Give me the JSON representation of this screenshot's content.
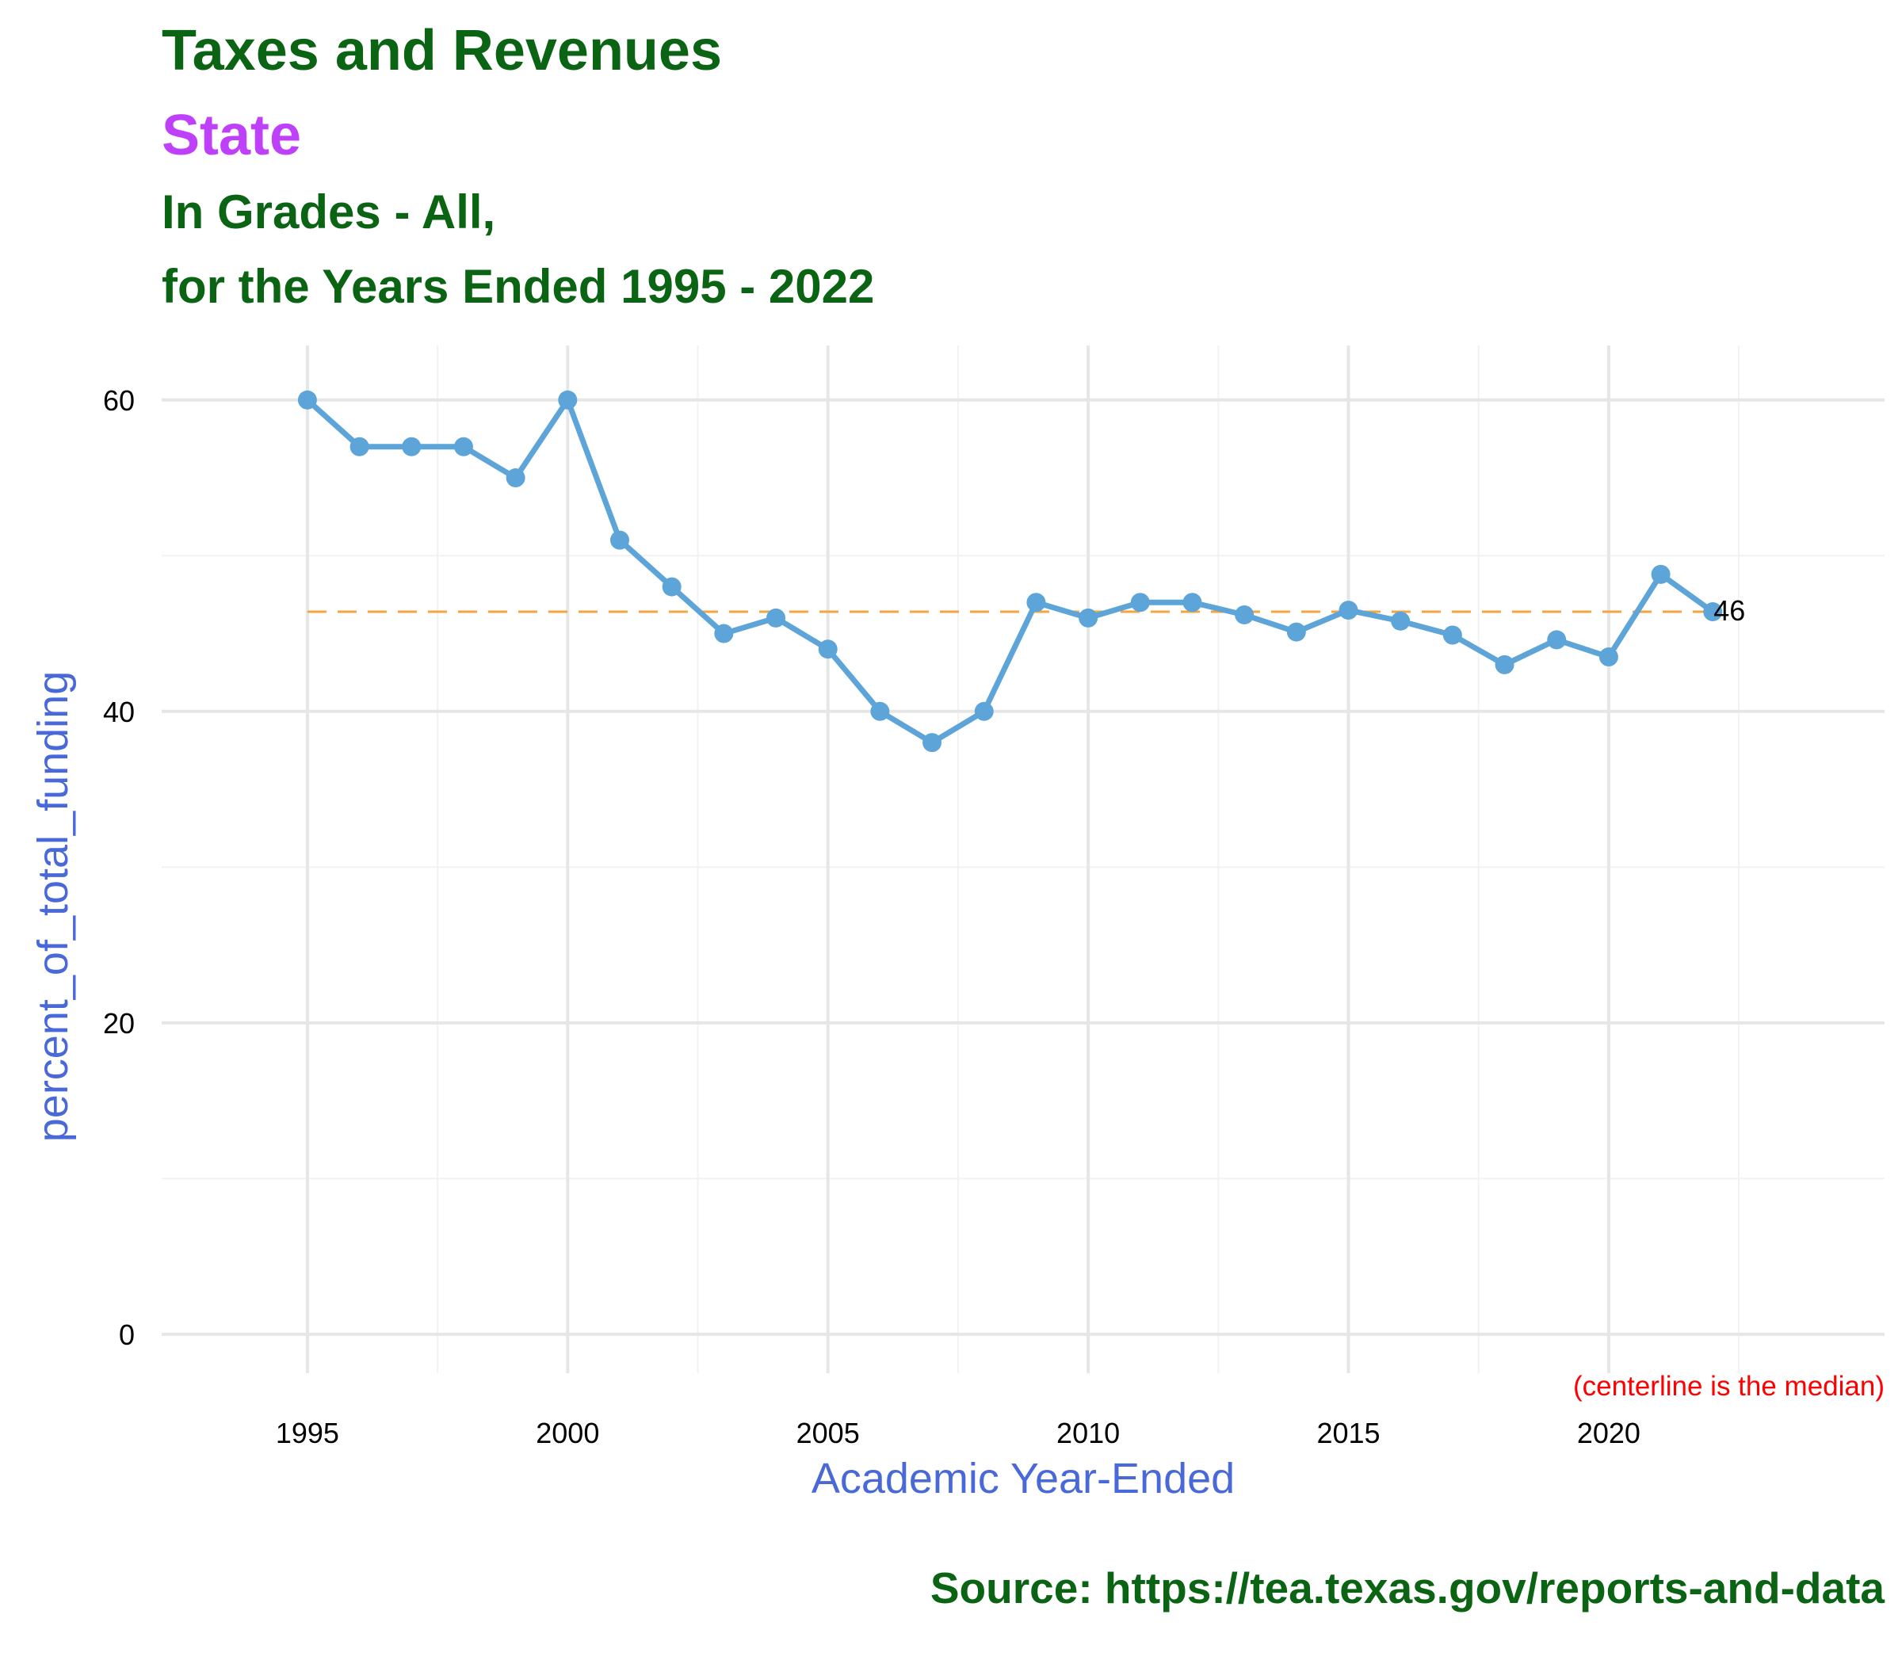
{
  "colors": {
    "title": "#0b6413",
    "subtitle_state": "#bf40fb",
    "axis_title": "#4a69d9",
    "line": "#5da5d8",
    "median_line": "#f4a442",
    "note": "#ff0000",
    "grid_major": "#e6e6e6",
    "grid_minor": "#f2f2f2"
  },
  "chart_data": {
    "type": "line",
    "title": "Taxes and Revenues",
    "subtitle": "State",
    "title_line3": "In Grades - All,",
    "title_line4": "for the Years Ended 1995 - 2022",
    "xlabel": "Academic Year-Ended",
    "ylabel": "percent_of_total_funding",
    "xlim": [
      1992.2,
      2025.3
    ],
    "ylim": [
      -2.5,
      63.5
    ],
    "x_ticks": [
      1995,
      2000,
      2005,
      2010,
      2015,
      2020
    ],
    "y_ticks": [
      0,
      20,
      40,
      60
    ],
    "grid": true,
    "series": [
      {
        "x": [
          1995,
          1996,
          1997,
          1998,
          1999,
          2000,
          2001,
          2002,
          2003,
          2004,
          2005,
          2006,
          2007,
          2008,
          2009,
          2010,
          2011,
          2012,
          2013,
          2014,
          2015,
          2016,
          2017,
          2018,
          2019,
          2020,
          2021,
          2022
        ],
        "values": [
          60,
          57,
          57,
          57,
          55,
          60,
          51,
          48,
          45,
          46,
          44,
          40,
          38,
          40,
          47,
          46,
          47,
          47,
          46.2,
          45.1,
          46.5,
          45.8,
          44.9,
          43,
          44.6,
          43.5,
          48.8,
          46.4
        ]
      }
    ],
    "median": 46.4,
    "end_label": "46",
    "note": "(centerline is the median)",
    "caption": "Source:  https://tea.texas.gov/reports-and-data"
  }
}
